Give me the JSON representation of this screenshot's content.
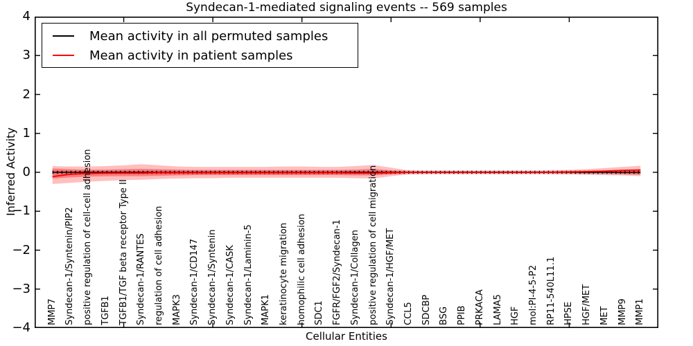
{
  "title": "Syndecan-1-mediated signaling events -- 569 samples",
  "axes": {
    "ylabel": "Inferred Activity",
    "xlabel": "Cellular Entities",
    "ytick_labels": [
      "4",
      "3",
      "2",
      "1",
      "0",
      "−1",
      "−2",
      "−3",
      "−4"
    ]
  },
  "legend": {
    "items": [
      {
        "label": "Mean activity in all permuted samples",
        "color": "#000000"
      },
      {
        "label": "Mean activity in patient samples",
        "color": "#ff0000"
      }
    ]
  },
  "chart_data": {
    "type": "line",
    "title": "Syndecan-1-mediated signaling events -- 569 samples",
    "xlabel": "Cellular Entities",
    "ylabel": "Inferred Activity",
    "ylim": [
      -4,
      4
    ],
    "grid": false,
    "legend_position": "upper left",
    "xtick_positions": [
      5,
      10,
      15,
      20,
      25,
      30
    ],
    "categories": [
      "MMP7",
      "Syndecan-1/Syntenin/PIP2",
      "positive regulation of cell-cell adhesion",
      "TGFB1",
      "TGFB1/TGF beta receptor Type II",
      "Syndecan-1/RANTES",
      "regulation of cell adhesion",
      "MAPK3",
      "Syndecan-1/CD147",
      "Syndecan-1/Syntenin",
      "Syndecan-1/CASK",
      "Syndecan-1/Laminin-5",
      "MAPK1",
      "keratinocyte migration",
      "homophilic cell adhesion",
      "SDC1",
      "FGFR/FGF2/Syndecan-1",
      "Syndecan-1/Collagen",
      "positive regulation of cell migration",
      "Syndecan-1/HGF/MET",
      "CCL5",
      "SDCBP",
      "BSG",
      "PPIB",
      "PRKACA",
      "LAMA5",
      "HGF",
      "mol:PI-4-5-P2",
      "RP11-540L11.1",
      "HPSE",
      "HGF/MET",
      "MET",
      "MMP9",
      "MMP1"
    ],
    "series": [
      {
        "name": "Mean activity in all permuted samples",
        "color": "#000000",
        "width": 1.6,
        "values": [
          0,
          0,
          0,
          0,
          0,
          0,
          0,
          0,
          0,
          0,
          0,
          0,
          0,
          0,
          0,
          0,
          0,
          0,
          0,
          0,
          0,
          0,
          0,
          0,
          0,
          0,
          0,
          0,
          0,
          0,
          0,
          0,
          0,
          0
        ]
      },
      {
        "name": "Mean activity in patient samples",
        "color": "#ff0000",
        "width": 1.8,
        "values": [
          -0.11,
          -0.05,
          -0.03,
          -0.02,
          -0.02,
          -0.02,
          -0.01,
          -0.01,
          -0.01,
          -0.01,
          -0.01,
          -0.01,
          -0.01,
          -0.01,
          -0.01,
          -0.01,
          -0.01,
          -0.02,
          -0.02,
          -0.01,
          0,
          0,
          0,
          0,
          0,
          0,
          0,
          0,
          0,
          0.01,
          0.02,
          0.03,
          0.05,
          0.06
        ]
      }
    ],
    "bands": [
      {
        "name": "permuted std band",
        "color": "#000000",
        "opacity": 0.12,
        "upper": [
          0.05,
          0.05,
          0.05,
          0.05,
          0.05,
          0.05,
          0.05,
          0.05,
          0.05,
          0.05,
          0.05,
          0.05,
          0.05,
          0.05,
          0.05,
          0.05,
          0.05,
          0.05,
          0.05,
          0.05,
          0.05,
          0.05,
          0.05,
          0.05,
          0.05,
          0.05,
          0.05,
          0.05,
          0.05,
          0.05,
          0.05,
          0.05,
          0.05,
          0.05
        ],
        "lower": [
          -0.05,
          -0.05,
          -0.05,
          -0.05,
          -0.05,
          -0.05,
          -0.05,
          -0.05,
          -0.05,
          -0.05,
          -0.05,
          -0.05,
          -0.05,
          -0.05,
          -0.05,
          -0.05,
          -0.05,
          -0.05,
          -0.05,
          -0.05,
          -0.05,
          -0.05,
          -0.05,
          -0.05,
          -0.05,
          -0.05,
          -0.05,
          -0.05,
          -0.05,
          -0.05,
          -0.05,
          -0.05,
          -0.05,
          -0.05
        ]
      },
      {
        "name": "patient std outer band",
        "color": "#ff0000",
        "opacity": 0.25,
        "upper": [
          0.16,
          0.15,
          0.15,
          0.16,
          0.18,
          0.21,
          0.18,
          0.15,
          0.14,
          0.14,
          0.14,
          0.14,
          0.14,
          0.15,
          0.15,
          0.14,
          0.14,
          0.16,
          0.19,
          0.12,
          0.05,
          0.04,
          0.04,
          0.04,
          0.04,
          0.04,
          0.04,
          0.04,
          0.05,
          0.06,
          0.08,
          0.11,
          0.14,
          0.17
        ],
        "lower": [
          -0.3,
          -0.27,
          -0.24,
          -0.22,
          -0.2,
          -0.19,
          -0.17,
          -0.16,
          -0.15,
          -0.15,
          -0.14,
          -0.14,
          -0.14,
          -0.14,
          -0.14,
          -0.14,
          -0.14,
          -0.15,
          -0.16,
          -0.1,
          -0.05,
          -0.04,
          -0.04,
          -0.04,
          -0.04,
          -0.04,
          -0.04,
          -0.04,
          -0.04,
          -0.05,
          -0.06,
          -0.07,
          -0.08,
          -0.1
        ]
      },
      {
        "name": "patient std inner band",
        "color": "#ff0000",
        "opacity": 0.35,
        "upper": [
          0.1,
          0.08,
          0.07,
          0.07,
          0.08,
          0.09,
          0.08,
          0.07,
          0.06,
          0.06,
          0.06,
          0.06,
          0.06,
          0.06,
          0.06,
          0.06,
          0.06,
          0.07,
          0.09,
          0.05,
          0.02,
          0.02,
          0.02,
          0.02,
          0.02,
          0.02,
          0.02,
          0.02,
          0.02,
          0.02,
          0.03,
          0.04,
          0.06,
          0.08
        ],
        "lower": [
          -0.16,
          -0.13,
          -0.11,
          -0.1,
          -0.1,
          -0.1,
          -0.09,
          -0.08,
          -0.07,
          -0.07,
          -0.07,
          -0.07,
          -0.07,
          -0.07,
          -0.07,
          -0.07,
          -0.07,
          -0.08,
          -0.08,
          -0.05,
          -0.02,
          -0.02,
          -0.02,
          -0.02,
          -0.02,
          -0.02,
          -0.02,
          -0.02,
          -0.02,
          -0.02,
          -0.03,
          -0.03,
          -0.05,
          -0.06
        ]
      }
    ]
  }
}
